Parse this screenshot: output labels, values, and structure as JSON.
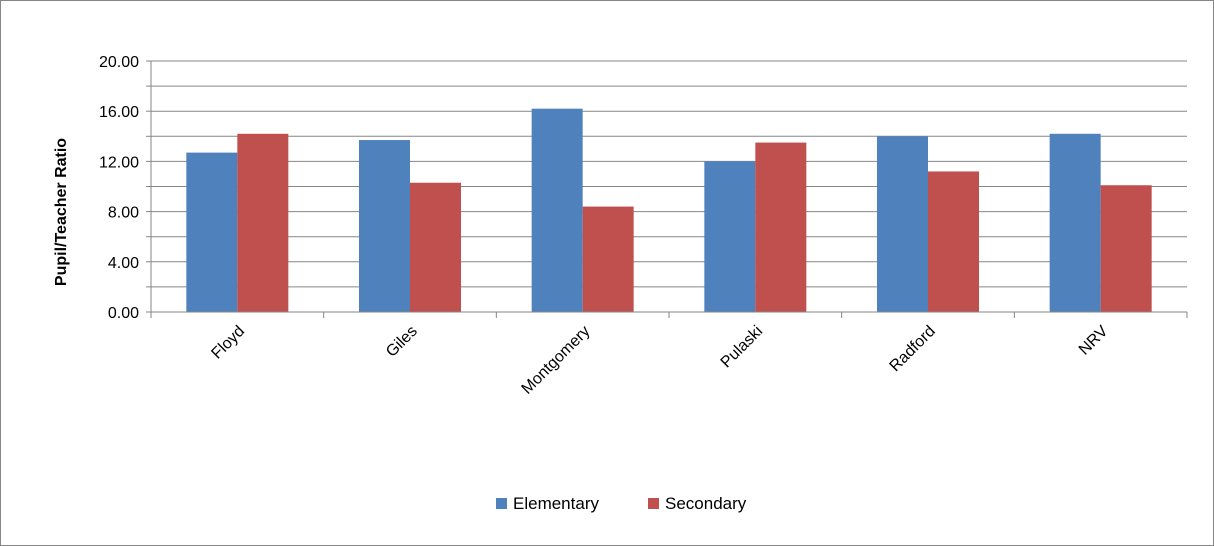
{
  "chart_data": {
    "type": "bar",
    "title": "",
    "xlabel": "",
    "ylabel": "Pupil/Teacher Ratio",
    "categories": [
      "Floyd",
      "Giles",
      "Montgomery",
      "Pulaski",
      "Radford",
      "NRV"
    ],
    "series": [
      {
        "name": "Elementary",
        "color": "#4F81BD",
        "values": [
          12.7,
          13.7,
          16.2,
          12.0,
          14.0,
          14.2
        ]
      },
      {
        "name": "Secondary",
        "color": "#C0504D",
        "values": [
          14.2,
          10.3,
          8.4,
          13.5,
          11.2,
          10.1
        ]
      }
    ],
    "ylim": [
      0,
      20
    ],
    "yticks": [
      "0.00",
      "4.00",
      "8.00",
      "12.00",
      "16.00",
      "20.00"
    ],
    "grid": true,
    "legend": "bottom"
  }
}
